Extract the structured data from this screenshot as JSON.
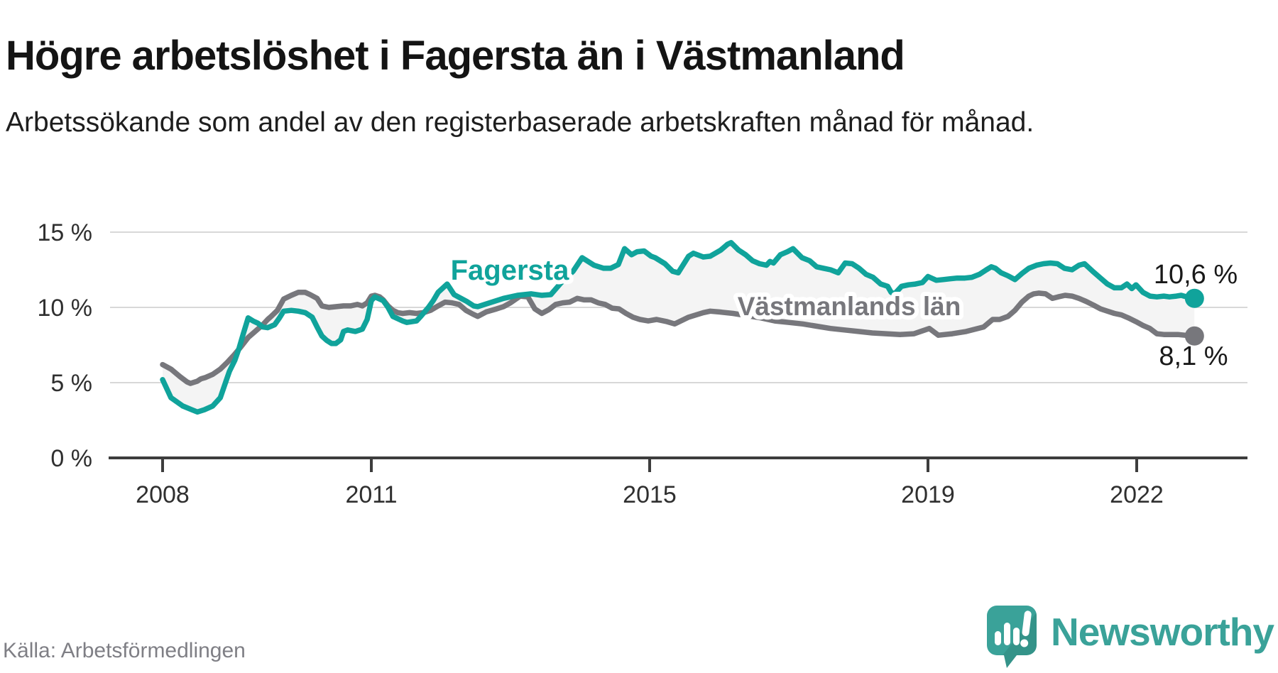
{
  "header": {
    "title": "Högre arbetslöshet i Fagersta än i Västmanland",
    "subtitle": "Arbetssökande som andel av den registerbaserade arbetskraften månad för månad."
  },
  "footer": {
    "source": "Källa: Arbetsförmedlingen",
    "brand": "Newsworthy"
  },
  "chart_data": {
    "type": "line",
    "title": "Högre arbetslöshet i Fagersta än i Västmanland",
    "ylabel": "",
    "xlabel": "",
    "unit": "%",
    "ylim": [
      0,
      15
    ],
    "xlim": [
      2007.95,
      2023.1
    ],
    "grid": "horizontal",
    "band_fill": "#f4f4f4",
    "gridline_color": "#d8d8d8",
    "axis_color": "#3d3d3d",
    "tick_label_color": "#2f2f2f",
    "y_ticks": [
      {
        "value": 15,
        "label": "15 %"
      },
      {
        "value": 10,
        "label": "10 %"
      },
      {
        "value": 5,
        "label": "5 %"
      },
      {
        "value": 0,
        "label": "0 %"
      }
    ],
    "x_ticks": [
      {
        "year": 2008,
        "label": "2008"
      },
      {
        "year": 2011,
        "label": "2011"
      },
      {
        "year": 2015,
        "label": "2015"
      },
      {
        "year": 2019,
        "label": "2019"
      },
      {
        "year": 2022,
        "label": "2022"
      }
    ],
    "series": [
      {
        "name": "Fagersta",
        "key": "fagersta",
        "color": "#10a39b",
        "end_label": "10,6 %",
        "end_value": 10.6,
        "points": [
          [
            2008.0,
            5.2
          ],
          [
            2008.12,
            4.0
          ],
          [
            2008.29,
            3.45
          ],
          [
            2008.42,
            3.2
          ],
          [
            2008.5,
            3.05
          ],
          [
            2008.6,
            3.2
          ],
          [
            2008.72,
            3.45
          ],
          [
            2008.83,
            4.0
          ],
          [
            2008.9,
            4.95
          ],
          [
            2008.96,
            5.75
          ],
          [
            2009.04,
            6.5
          ],
          [
            2009.1,
            7.3
          ],
          [
            2009.16,
            8.25
          ],
          [
            2009.23,
            9.3
          ],
          [
            2009.3,
            9.1
          ],
          [
            2009.37,
            8.95
          ],
          [
            2009.44,
            8.7
          ],
          [
            2009.51,
            8.65
          ],
          [
            2009.61,
            8.85
          ],
          [
            2009.68,
            9.3
          ],
          [
            2009.74,
            9.75
          ],
          [
            2009.85,
            9.8
          ],
          [
            2009.95,
            9.75
          ],
          [
            2010.05,
            9.65
          ],
          [
            2010.15,
            9.35
          ],
          [
            2010.22,
            8.7
          ],
          [
            2010.29,
            8.1
          ],
          [
            2010.36,
            7.8
          ],
          [
            2010.43,
            7.6
          ],
          [
            2010.49,
            7.6
          ],
          [
            2010.56,
            7.85
          ],
          [
            2010.6,
            8.4
          ],
          [
            2010.66,
            8.5
          ],
          [
            2010.77,
            8.4
          ],
          [
            2010.87,
            8.55
          ],
          [
            2010.94,
            9.2
          ],
          [
            2011.0,
            10.45
          ],
          [
            2011.05,
            10.7
          ],
          [
            2011.17,
            10.45
          ],
          [
            2011.24,
            10.0
          ],
          [
            2011.31,
            9.4
          ],
          [
            2011.45,
            9.1
          ],
          [
            2011.51,
            9.0
          ],
          [
            2011.65,
            9.1
          ],
          [
            2011.71,
            9.4
          ],
          [
            2011.82,
            10.0
          ],
          [
            2011.89,
            10.45
          ],
          [
            2011.96,
            11.0
          ],
          [
            2012.09,
            11.55
          ],
          [
            2012.19,
            10.85
          ],
          [
            2012.29,
            10.6
          ],
          [
            2012.37,
            10.4
          ],
          [
            2012.47,
            10.1
          ],
          [
            2012.53,
            10.05
          ],
          [
            2012.7,
            10.3
          ],
          [
            2012.9,
            10.6
          ],
          [
            2013.1,
            10.8
          ],
          [
            2013.3,
            10.9
          ],
          [
            2013.45,
            10.8
          ],
          [
            2013.58,
            10.85
          ],
          [
            2013.72,
            11.6
          ],
          [
            2013.9,
            12.4
          ],
          [
            2014.03,
            13.3
          ],
          [
            2014.2,
            12.8
          ],
          [
            2014.34,
            12.6
          ],
          [
            2014.44,
            12.6
          ],
          [
            2014.55,
            12.85
          ],
          [
            2014.64,
            13.9
          ],
          [
            2014.74,
            13.5
          ],
          [
            2014.82,
            13.7
          ],
          [
            2014.92,
            13.75
          ],
          [
            2015.02,
            13.4
          ],
          [
            2015.08,
            13.3
          ],
          [
            2015.22,
            12.9
          ],
          [
            2015.33,
            12.4
          ],
          [
            2015.41,
            12.3
          ],
          [
            2015.56,
            13.4
          ],
          [
            2015.63,
            13.6
          ],
          [
            2015.77,
            13.35
          ],
          [
            2015.87,
            13.4
          ],
          [
            2016.02,
            13.8
          ],
          [
            2016.12,
            14.2
          ],
          [
            2016.17,
            14.3
          ],
          [
            2016.28,
            13.8
          ],
          [
            2016.38,
            13.5
          ],
          [
            2016.48,
            13.1
          ],
          [
            2016.58,
            12.9
          ],
          [
            2016.68,
            12.8
          ],
          [
            2016.73,
            13.05
          ],
          [
            2016.78,
            12.95
          ],
          [
            2016.88,
            13.5
          ],
          [
            2016.98,
            13.7
          ],
          [
            2017.06,
            13.9
          ],
          [
            2017.19,
            13.3
          ],
          [
            2017.3,
            13.1
          ],
          [
            2017.4,
            12.7
          ],
          [
            2017.5,
            12.6
          ],
          [
            2017.6,
            12.5
          ],
          [
            2017.71,
            12.3
          ],
          [
            2017.81,
            12.95
          ],
          [
            2017.91,
            12.9
          ],
          [
            2018.01,
            12.6
          ],
          [
            2018.11,
            12.2
          ],
          [
            2018.21,
            12.0
          ],
          [
            2018.32,
            11.55
          ],
          [
            2018.42,
            11.4
          ],
          [
            2018.47,
            11.0
          ],
          [
            2018.52,
            10.9
          ],
          [
            2018.62,
            11.4
          ],
          [
            2018.72,
            11.5
          ],
          [
            2018.82,
            11.55
          ],
          [
            2018.92,
            11.65
          ],
          [
            2019.0,
            12.05
          ],
          [
            2019.12,
            11.8
          ],
          [
            2019.22,
            11.85
          ],
          [
            2019.32,
            11.9
          ],
          [
            2019.42,
            11.95
          ],
          [
            2019.53,
            11.95
          ],
          [
            2019.63,
            12.0
          ],
          [
            2019.74,
            12.2
          ],
          [
            2019.84,
            12.5
          ],
          [
            2019.91,
            12.7
          ],
          [
            2019.97,
            12.6
          ],
          [
            2020.05,
            12.3
          ],
          [
            2020.15,
            12.1
          ],
          [
            2020.25,
            11.85
          ],
          [
            2020.35,
            12.25
          ],
          [
            2020.45,
            12.6
          ],
          [
            2020.56,
            12.8
          ],
          [
            2020.66,
            12.9
          ],
          [
            2020.76,
            12.95
          ],
          [
            2020.86,
            12.9
          ],
          [
            2020.96,
            12.6
          ],
          [
            2021.07,
            12.5
          ],
          [
            2021.17,
            12.8
          ],
          [
            2021.25,
            12.9
          ],
          [
            2021.38,
            12.35
          ],
          [
            2021.48,
            11.95
          ],
          [
            2021.58,
            11.55
          ],
          [
            2021.68,
            11.3
          ],
          [
            2021.78,
            11.3
          ],
          [
            2021.86,
            11.55
          ],
          [
            2021.93,
            11.25
          ],
          [
            2021.99,
            11.5
          ],
          [
            2022.09,
            11.0
          ],
          [
            2022.19,
            10.75
          ],
          [
            2022.29,
            10.7
          ],
          [
            2022.39,
            10.75
          ],
          [
            2022.47,
            10.7
          ],
          [
            2022.57,
            10.75
          ],
          [
            2022.64,
            10.8
          ],
          [
            2022.72,
            10.7
          ],
          [
            2022.83,
            10.6
          ]
        ]
      },
      {
        "name": "Västmanlands län",
        "key": "vastmanlands-lan",
        "color": "#77777c",
        "end_label": "8,1 %",
        "end_value": 8.1,
        "points": [
          [
            2008.0,
            6.2
          ],
          [
            2008.12,
            5.9
          ],
          [
            2008.25,
            5.4
          ],
          [
            2008.35,
            5.05
          ],
          [
            2008.4,
            4.95
          ],
          [
            2008.5,
            5.1
          ],
          [
            2008.55,
            5.25
          ],
          [
            2008.62,
            5.35
          ],
          [
            2008.72,
            5.55
          ],
          [
            2008.83,
            5.9
          ],
          [
            2008.93,
            6.35
          ],
          [
            2009.03,
            6.85
          ],
          [
            2009.13,
            7.4
          ],
          [
            2009.23,
            8.0
          ],
          [
            2009.33,
            8.4
          ],
          [
            2009.44,
            8.85
          ],
          [
            2009.51,
            9.2
          ],
          [
            2009.56,
            9.4
          ],
          [
            2009.65,
            9.8
          ],
          [
            2009.74,
            10.55
          ],
          [
            2009.85,
            10.8
          ],
          [
            2009.95,
            11.0
          ],
          [
            2010.05,
            11.0
          ],
          [
            2010.12,
            10.85
          ],
          [
            2010.22,
            10.6
          ],
          [
            2010.29,
            10.1
          ],
          [
            2010.39,
            10.0
          ],
          [
            2010.5,
            10.05
          ],
          [
            2010.6,
            10.1
          ],
          [
            2010.7,
            10.1
          ],
          [
            2010.8,
            10.2
          ],
          [
            2010.87,
            10.1
          ],
          [
            2010.94,
            10.3
          ],
          [
            2011.0,
            10.75
          ],
          [
            2011.05,
            10.8
          ],
          [
            2011.12,
            10.7
          ],
          [
            2011.17,
            10.5
          ],
          [
            2011.24,
            10.1
          ],
          [
            2011.31,
            9.8
          ],
          [
            2011.38,
            9.65
          ],
          [
            2011.45,
            9.6
          ],
          [
            2011.55,
            9.65
          ],
          [
            2011.65,
            9.6
          ],
          [
            2011.75,
            9.65
          ],
          [
            2011.85,
            9.8
          ],
          [
            2011.96,
            10.1
          ],
          [
            2012.06,
            10.35
          ],
          [
            2012.16,
            10.3
          ],
          [
            2012.26,
            10.2
          ],
          [
            2012.36,
            9.8
          ],
          [
            2012.46,
            9.55
          ],
          [
            2012.53,
            9.4
          ],
          [
            2012.65,
            9.7
          ],
          [
            2012.8,
            9.9
          ],
          [
            2012.9,
            10.05
          ],
          [
            2013.0,
            10.3
          ],
          [
            2013.14,
            10.75
          ],
          [
            2013.25,
            10.7
          ],
          [
            2013.35,
            9.9
          ],
          [
            2013.45,
            9.6
          ],
          [
            2013.55,
            9.85
          ],
          [
            2013.65,
            10.2
          ],
          [
            2013.75,
            10.3
          ],
          [
            2013.85,
            10.35
          ],
          [
            2013.96,
            10.6
          ],
          [
            2014.06,
            10.5
          ],
          [
            2014.16,
            10.5
          ],
          [
            2014.26,
            10.3
          ],
          [
            2014.36,
            10.2
          ],
          [
            2014.46,
            9.95
          ],
          [
            2014.56,
            9.9
          ],
          [
            2014.66,
            9.6
          ],
          [
            2014.76,
            9.35
          ],
          [
            2014.86,
            9.2
          ],
          [
            2014.98,
            9.1
          ],
          [
            2015.1,
            9.2
          ],
          [
            2015.25,
            9.05
          ],
          [
            2015.36,
            8.9
          ],
          [
            2015.56,
            9.35
          ],
          [
            2015.77,
            9.65
          ],
          [
            2015.87,
            9.75
          ],
          [
            2016.0,
            9.7
          ],
          [
            2016.2,
            9.6
          ],
          [
            2016.4,
            9.45
          ],
          [
            2016.6,
            9.3
          ],
          [
            2016.8,
            9.1
          ],
          [
            2017.0,
            9.0
          ],
          [
            2017.2,
            8.9
          ],
          [
            2017.4,
            8.75
          ],
          [
            2017.6,
            8.6
          ],
          [
            2017.8,
            8.5
          ],
          [
            2018.0,
            8.4
          ],
          [
            2018.2,
            8.3
          ],
          [
            2018.4,
            8.25
          ],
          [
            2018.6,
            8.2
          ],
          [
            2018.8,
            8.25
          ],
          [
            2019.02,
            8.6
          ],
          [
            2019.15,
            8.15
          ],
          [
            2019.35,
            8.25
          ],
          [
            2019.55,
            8.4
          ],
          [
            2019.8,
            8.7
          ],
          [
            2019.93,
            9.2
          ],
          [
            2020.03,
            9.2
          ],
          [
            2020.15,
            9.4
          ],
          [
            2020.25,
            9.8
          ],
          [
            2020.35,
            10.35
          ],
          [
            2020.45,
            10.75
          ],
          [
            2020.52,
            10.9
          ],
          [
            2020.59,
            10.95
          ],
          [
            2020.69,
            10.9
          ],
          [
            2020.79,
            10.6
          ],
          [
            2020.87,
            10.7
          ],
          [
            2020.97,
            10.8
          ],
          [
            2021.07,
            10.75
          ],
          [
            2021.17,
            10.6
          ],
          [
            2021.27,
            10.4
          ],
          [
            2021.38,
            10.15
          ],
          [
            2021.48,
            9.9
          ],
          [
            2021.58,
            9.75
          ],
          [
            2021.68,
            9.6
          ],
          [
            2021.78,
            9.5
          ],
          [
            2021.88,
            9.3
          ],
          [
            2021.99,
            9.05
          ],
          [
            2022.09,
            8.8
          ],
          [
            2022.19,
            8.6
          ],
          [
            2022.29,
            8.25
          ],
          [
            2022.39,
            8.2
          ],
          [
            2022.49,
            8.2
          ],
          [
            2022.59,
            8.2
          ],
          [
            2022.69,
            8.15
          ],
          [
            2022.83,
            8.1
          ]
        ]
      }
    ],
    "legend_position": "inline-labels"
  }
}
